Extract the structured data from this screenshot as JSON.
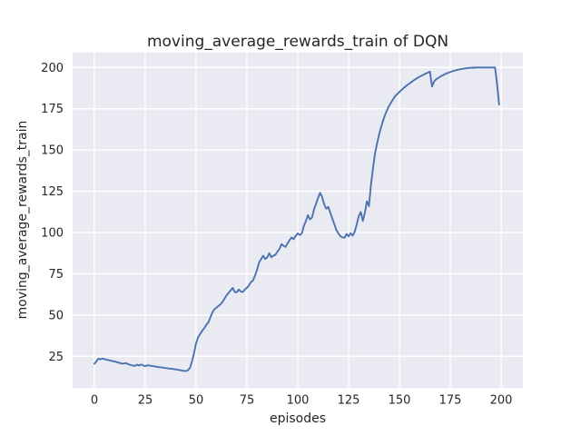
{
  "figure": {
    "title": "moving_average_rewards_train of DQN",
    "xlabel": "episodes",
    "ylabel": "moving_average_rewards_train"
  },
  "chart_data": {
    "type": "line",
    "title": "moving_average_rewards_train of DQN",
    "xlabel": "episodes",
    "ylabel": "moving_average_rewards_train",
    "x_ticks": [
      0,
      25,
      50,
      75,
      100,
      125,
      150,
      175,
      200
    ],
    "y_ticks": [
      25,
      50,
      75,
      100,
      125,
      150,
      175,
      200
    ],
    "xlim": [
      -10.7,
      210.7
    ],
    "ylim": [
      5.8,
      209.2
    ],
    "grid": true,
    "legend": false,
    "style": {
      "figure_bg": "#FFFFFF",
      "plot_bg": "#EAEAF2",
      "grid_color": "#FFFFFF",
      "line_color": "#4C72B0",
      "text_color": "#262626"
    },
    "series": [
      {
        "name": "moving_average_rewards_train",
        "color": "#4C72B0",
        "x_start": 0,
        "x_step": 1,
        "y": [
          20.5,
          22,
          23.6,
          23.2,
          23.7,
          23.3,
          23,
          22.7,
          22.4,
          22.1,
          21.9,
          21.5,
          21.2,
          20.8,
          20.5,
          20.9,
          20.6,
          20.1,
          19.7,
          19.4,
          19.2,
          20,
          19.4,
          20.1,
          19.5,
          19,
          19.6,
          19.4,
          19.2,
          19,
          18.8,
          18.6,
          18.4,
          18.3,
          18.1,
          17.9,
          17.8,
          17.6,
          17.5,
          17.3,
          17.1,
          16.9,
          16.7,
          16.4,
          16.2,
          16.1,
          16.6,
          18,
          22,
          27,
          33,
          36.5,
          38.5,
          40.5,
          42,
          44,
          45.5,
          48.5,
          51.5,
          53.5,
          54.5,
          55.5,
          56.5,
          58,
          60,
          62,
          63.5,
          65,
          66.5,
          64,
          63.8,
          65.5,
          64.2,
          64,
          65.5,
          66.5,
          68,
          70,
          71,
          74,
          77.5,
          82,
          84,
          86,
          84,
          85,
          87.5,
          85,
          86,
          86.5,
          88.5,
          90,
          93,
          92,
          91.3,
          93.5,
          95.5,
          97,
          96,
          98,
          99.5,
          98.5,
          99.5,
          104,
          107,
          110.5,
          108,
          109,
          114,
          117.5,
          121,
          124,
          121.5,
          117,
          114.5,
          115.5,
          112,
          108.5,
          105,
          101.5,
          99.5,
          97.8,
          97,
          96.8,
          99.2,
          97.7,
          99.6,
          98.1,
          100.5,
          105,
          110,
          112.5,
          107,
          112,
          119,
          116,
          129,
          139,
          148,
          154,
          159.5,
          164,
          168,
          171.5,
          174.5,
          177,
          179,
          181,
          182.8,
          184,
          185.2,
          186.4,
          187.5,
          188.5,
          189.5,
          190.4,
          191.3,
          192.2,
          193,
          193.8,
          194.5,
          195.1,
          195.7,
          196.3,
          196.9,
          197.5,
          188.5,
          191.5,
          192.8,
          193.6,
          194.4,
          195.1,
          195.7,
          196.3,
          196.8,
          197.3,
          197.7,
          198.1,
          198.4,
          198.7,
          199,
          199.2,
          199.4,
          199.6,
          199.7,
          199.8,
          199.9,
          199.9,
          200,
          200,
          200,
          200,
          200,
          200,
          200,
          200,
          200,
          200,
          190,
          177.5
        ]
      }
    ]
  }
}
